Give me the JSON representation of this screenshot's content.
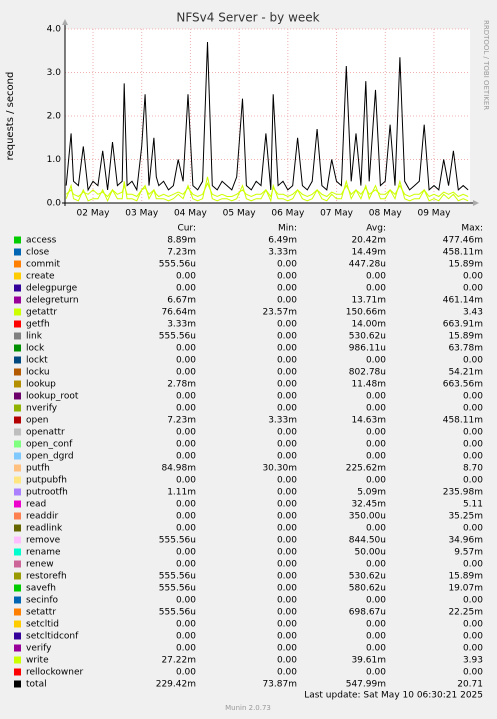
{
  "chart_data": {
    "type": "line",
    "title": "NFSv4 Server - by week",
    "y_label": "requests / second",
    "watermark": "RRDTOOL / TOBI OETIKER",
    "last_update": "Last update: Sat May 10 06:30:21 2025",
    "version": "Munin 2.0.73",
    "grid": true,
    "xlim": [
      1.425,
      9.74
    ],
    "ylim": [
      0,
      4
    ],
    "yticks": [
      {
        "value": 0,
        "label": "0.0"
      },
      {
        "value": 1,
        "label": "1.0"
      },
      {
        "value": 2,
        "label": "2.0"
      },
      {
        "value": 3,
        "label": "3.0"
      },
      {
        "value": 4,
        "label": "4.0"
      }
    ],
    "xticks": [
      {
        "value": 2,
        "label": "02 May"
      },
      {
        "value": 3,
        "label": "03 May"
      },
      {
        "value": 4,
        "label": "04 May"
      },
      {
        "value": 5,
        "label": "05 May"
      },
      {
        "value": 6,
        "label": "06 May"
      },
      {
        "value": 7,
        "label": "07 May"
      },
      {
        "value": 8,
        "label": "08 May"
      },
      {
        "value": 9,
        "label": "09 May"
      }
    ],
    "stat_headers": [
      "Cur:",
      "Min:",
      "Avg:",
      "Max:"
    ],
    "x": [
      1.45,
      1.55,
      1.6,
      1.7,
      1.8,
      1.9,
      2.0,
      2.1,
      2.2,
      2.3,
      2.4,
      2.5,
      2.6,
      2.64,
      2.7,
      2.8,
      2.9,
      3.0,
      3.07,
      3.15,
      3.25,
      3.3,
      3.35,
      3.45,
      3.55,
      3.65,
      3.75,
      3.85,
      3.95,
      4.05,
      4.15,
      4.25,
      4.35,
      4.45,
      4.55,
      4.65,
      4.75,
      4.85,
      4.95,
      5.07,
      5.15,
      5.25,
      5.35,
      5.45,
      5.55,
      5.65,
      5.7,
      5.8,
      5.9,
      6.0,
      6.1,
      6.2,
      6.3,
      6.4,
      6.5,
      6.6,
      6.7,
      6.8,
      6.9,
      7.0,
      7.1,
      7.2,
      7.3,
      7.4,
      7.5,
      7.6,
      7.67,
      7.8,
      7.9,
      8.0,
      8.1,
      8.2,
      8.3,
      8.4,
      8.5,
      8.6,
      8.7,
      8.8,
      8.9,
      9.0,
      9.1,
      9.2,
      9.3,
      9.4,
      9.5,
      9.6,
      9.7
    ],
    "series": [
      {
        "name": "access",
        "color": "#00cc00",
        "stats": [
          "8.89m",
          "6.49m",
          "20.42m",
          "477.46m"
        ]
      },
      {
        "name": "close",
        "color": "#0066b3",
        "stats": [
          "7.23m",
          "3.33m",
          "14.49m",
          "458.11m"
        ]
      },
      {
        "name": "commit",
        "color": "#ff8000",
        "stats": [
          "555.56u",
          "0.00",
          "447.28u",
          "15.89m"
        ]
      },
      {
        "name": "create",
        "color": "#ffcc00",
        "stats": [
          "0.00",
          "0.00",
          "0.00",
          "0.00"
        ]
      },
      {
        "name": "delegpurge",
        "color": "#330099",
        "stats": [
          "0.00",
          "0.00",
          "0.00",
          "0.00"
        ]
      },
      {
        "name": "delegreturn",
        "color": "#990099",
        "stats": [
          "6.67m",
          "0.00",
          "13.71m",
          "461.14m"
        ]
      },
      {
        "name": "getattr",
        "color": "#ccff00",
        "stats": [
          "76.64m",
          "23.57m",
          "150.66m",
          "3.43"
        ],
        "values": [
          0.2,
          0.3,
          0.2,
          0.15,
          0.25,
          0.2,
          0.3,
          0.2,
          0.25,
          0.15,
          0.3,
          0.2,
          0.25,
          0.4,
          0.2,
          0.2,
          0.15,
          0.3,
          0.35,
          0.2,
          0.3,
          0.2,
          0.15,
          0.2,
          0.15,
          0.2,
          0.25,
          0.2,
          0.35,
          0.2,
          0.15,
          0.2,
          0.45,
          0.2,
          0.15,
          0.2,
          0.15,
          0.15,
          0.2,
          0.3,
          0.2,
          0.15,
          0.2,
          0.2,
          0.3,
          0.15,
          0.35,
          0.2,
          0.2,
          0.15,
          0.2,
          0.3,
          0.2,
          0.15,
          0.2,
          0.3,
          0.2,
          0.15,
          0.25,
          0.2,
          0.2,
          0.4,
          0.2,
          0.3,
          0.2,
          0.35,
          0.2,
          0.3,
          0.2,
          0.2,
          0.3,
          0.2,
          0.4,
          0.2,
          0.15,
          0.2,
          0.2,
          0.3,
          0.15,
          0.2,
          0.15,
          0.25,
          0.2,
          0.25,
          0.15,
          0.2,
          0.15
        ]
      },
      {
        "name": "getfh",
        "color": "#ff0000",
        "stats": [
          "3.33m",
          "0.00",
          "14.00m",
          "663.91m"
        ]
      },
      {
        "name": "link",
        "color": "#808080",
        "stats": [
          "555.56u",
          "0.00",
          "530.62u",
          "15.89m"
        ]
      },
      {
        "name": "lock",
        "color": "#008f00",
        "stats": [
          "0.00",
          "0.00",
          "986.11u",
          "63.78m"
        ]
      },
      {
        "name": "lockt",
        "color": "#00487d",
        "stats": [
          "0.00",
          "0.00",
          "0.00",
          "0.00"
        ]
      },
      {
        "name": "locku",
        "color": "#b35a00",
        "stats": [
          "0.00",
          "0.00",
          "802.78u",
          "54.21m"
        ]
      },
      {
        "name": "lookup",
        "color": "#b38f00",
        "stats": [
          "2.78m",
          "0.00",
          "11.48m",
          "663.56m"
        ]
      },
      {
        "name": "lookup_root",
        "color": "#6b006b",
        "stats": [
          "0.00",
          "0.00",
          "0.00",
          "0.00"
        ]
      },
      {
        "name": "nverify",
        "color": "#8fb300",
        "stats": [
          "0.00",
          "0.00",
          "0.00",
          "0.00"
        ]
      },
      {
        "name": "open",
        "color": "#b30000",
        "stats": [
          "7.23m",
          "3.33m",
          "14.63m",
          "458.11m"
        ]
      },
      {
        "name": "openattr",
        "color": "#bebebe",
        "stats": [
          "0.00",
          "0.00",
          "0.00",
          "0.00"
        ]
      },
      {
        "name": "open_conf",
        "color": "#80ff80",
        "stats": [
          "0.00",
          "0.00",
          "0.00",
          "0.00"
        ]
      },
      {
        "name": "open_dgrd",
        "color": "#80c9ff",
        "stats": [
          "0.00",
          "0.00",
          "0.00",
          "0.00"
        ]
      },
      {
        "name": "putfh",
        "color": "#ffc080",
        "stats": [
          "84.98m",
          "30.30m",
          "225.62m",
          "8.70"
        ]
      },
      {
        "name": "putpubfh",
        "color": "#ffe680",
        "stats": [
          "0.00",
          "0.00",
          "0.00",
          "0.00"
        ]
      },
      {
        "name": "putrootfh",
        "color": "#aa80ff",
        "stats": [
          "1.11m",
          "0.00",
          "5.09m",
          "235.98m"
        ]
      },
      {
        "name": "read",
        "color": "#ee00cc",
        "stats": [
          "0.00",
          "0.00",
          "32.45m",
          "5.11"
        ]
      },
      {
        "name": "readdir",
        "color": "#ff8050",
        "stats": [
          "0.00",
          "0.00",
          "350.00u",
          "35.25m"
        ]
      },
      {
        "name": "readlink",
        "color": "#666600",
        "stats": [
          "0.00",
          "0.00",
          "0.00",
          "0.00"
        ]
      },
      {
        "name": "remove",
        "color": "#ffbfff",
        "stats": [
          "555.56u",
          "0.00",
          "844.50u",
          "34.96m"
        ]
      },
      {
        "name": "rename",
        "color": "#00ffcc",
        "stats": [
          "0.00",
          "0.00",
          "50.00u",
          "9.57m"
        ]
      },
      {
        "name": "renew",
        "color": "#cc6699",
        "stats": [
          "0.00",
          "0.00",
          "0.00",
          "0.00"
        ]
      },
      {
        "name": "restorefh",
        "color": "#999900",
        "stats": [
          "555.56u",
          "0.00",
          "530.62u",
          "15.89m"
        ]
      },
      {
        "name": "savefh",
        "color": "#00cc00",
        "stats": [
          "555.56u",
          "0.00",
          "580.62u",
          "19.07m"
        ]
      },
      {
        "name": "secinfo",
        "color": "#0066b3",
        "stats": [
          "0.00",
          "0.00",
          "0.00",
          "0.00"
        ]
      },
      {
        "name": "setattr",
        "color": "#ff8000",
        "stats": [
          "555.56u",
          "0.00",
          "698.67u",
          "22.25m"
        ]
      },
      {
        "name": "setcltid",
        "color": "#ffcc00",
        "stats": [
          "0.00",
          "0.00",
          "0.00",
          "0.00"
        ]
      },
      {
        "name": "setcltidconf",
        "color": "#330099",
        "stats": [
          "0.00",
          "0.00",
          "0.00",
          "0.00"
        ]
      },
      {
        "name": "verify",
        "color": "#990099",
        "stats": [
          "0.00",
          "0.00",
          "0.00",
          "0.00"
        ]
      },
      {
        "name": "write",
        "color": "#ccff00",
        "stats": [
          "27.22m",
          "0.00",
          "39.61m",
          "3.93"
        ],
        "values": [
          0.1,
          0.4,
          0.1,
          0.05,
          0.3,
          0.05,
          0.1,
          0.1,
          0.3,
          0.05,
          0.3,
          0.1,
          0.1,
          0.5,
          0.1,
          0.1,
          0.05,
          0.3,
          0.4,
          0.1,
          0.3,
          0.1,
          0.1,
          0.1,
          0.05,
          0.1,
          0.2,
          0.1,
          0.4,
          0.1,
          0.05,
          0.1,
          0.6,
          0.1,
          0.05,
          0.1,
          0.1,
          0.05,
          0.1,
          0.4,
          0.1,
          0.05,
          0.1,
          0.1,
          0.3,
          0.05,
          0.4,
          0.1,
          0.1,
          0.05,
          0.1,
          0.3,
          0.1,
          0.05,
          0.1,
          0.3,
          0.1,
          0.05,
          0.2,
          0.1,
          0.1,
          0.5,
          0.1,
          0.3,
          0.1,
          0.4,
          0.1,
          0.4,
          0.1,
          0.1,
          0.3,
          0.1,
          0.5,
          0.1,
          0.05,
          0.1,
          0.1,
          0.3,
          0.05,
          0.1,
          0.05,
          0.2,
          0.1,
          0.2,
          0.05,
          0.1,
          0.05
        ]
      },
      {
        "name": "rellockowner",
        "color": "#ff0000",
        "stats": [
          "0.00",
          "0.00",
          "0.00",
          "0.00"
        ]
      },
      {
        "name": "total",
        "color": "#000000",
        "stats": [
          "229.42m",
          "73.87m",
          "547.99m",
          "20.71"
        ],
        "values": [
          0.4,
          1.6,
          0.5,
          0.4,
          1.3,
          0.3,
          0.5,
          0.4,
          1.2,
          0.3,
          1.4,
          0.4,
          0.5,
          2.75,
          0.4,
          0.5,
          0.3,
          1.3,
          2.5,
          0.4,
          1.5,
          0.6,
          0.4,
          0.5,
          0.3,
          0.4,
          1.0,
          0.5,
          2.5,
          0.4,
          0.3,
          0.5,
          3.7,
          0.4,
          0.3,
          0.5,
          0.4,
          0.3,
          0.6,
          2.4,
          0.4,
          0.3,
          0.5,
          0.4,
          1.6,
          0.3,
          2.5,
          0.4,
          0.5,
          0.3,
          0.4,
          1.5,
          0.4,
          0.3,
          0.5,
          1.7,
          0.4,
          0.3,
          1.0,
          0.5,
          0.4,
          3.15,
          0.5,
          1.6,
          0.4,
          2.8,
          0.5,
          2.6,
          0.4,
          0.5,
          1.8,
          0.4,
          3.35,
          0.5,
          0.3,
          0.4,
          0.5,
          1.8,
          0.3,
          0.4,
          0.3,
          1.0,
          0.4,
          1.2,
          0.3,
          0.4,
          0.3
        ]
      }
    ]
  }
}
